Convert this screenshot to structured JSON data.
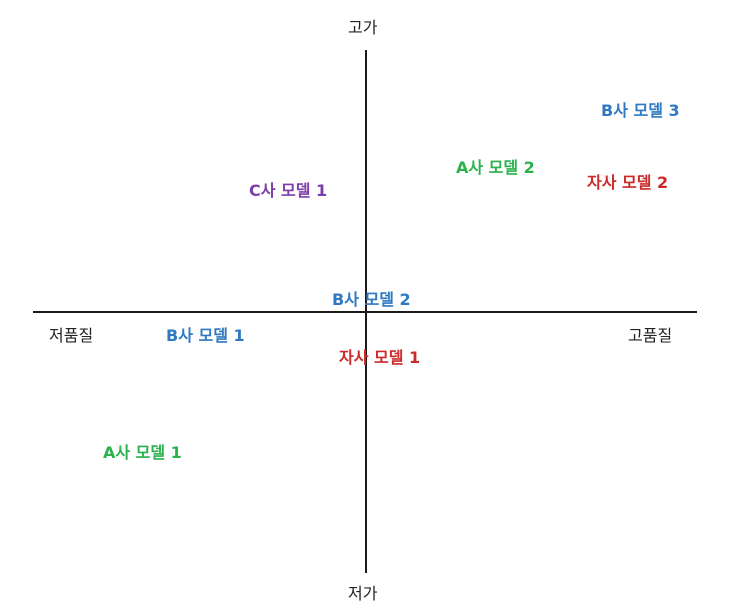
{
  "axes": {
    "top": "고가",
    "bottom": "저가",
    "left": "저품질",
    "right": "고품질"
  },
  "colors": {
    "axis": "#1a1a1a",
    "company_b": "#2f78c2",
    "company_a": "#2bb24c",
    "company_c": "#7b3ea8",
    "own_company": "#cc2a2a"
  },
  "models": [
    {
      "label": "B사 모델 3",
      "group": "company_b"
    },
    {
      "label": "A사 모델 2",
      "group": "company_a"
    },
    {
      "label": "자사 모델 2",
      "group": "own_company"
    },
    {
      "label": "C사 모델 1",
      "group": "company_c"
    },
    {
      "label": "B사 모델 2",
      "group": "company_b"
    },
    {
      "label": "B사 모델 1",
      "group": "company_b"
    },
    {
      "label": "자사 모델 1",
      "group": "own_company"
    },
    {
      "label": "A사 모델 1",
      "group": "company_a"
    }
  ]
}
